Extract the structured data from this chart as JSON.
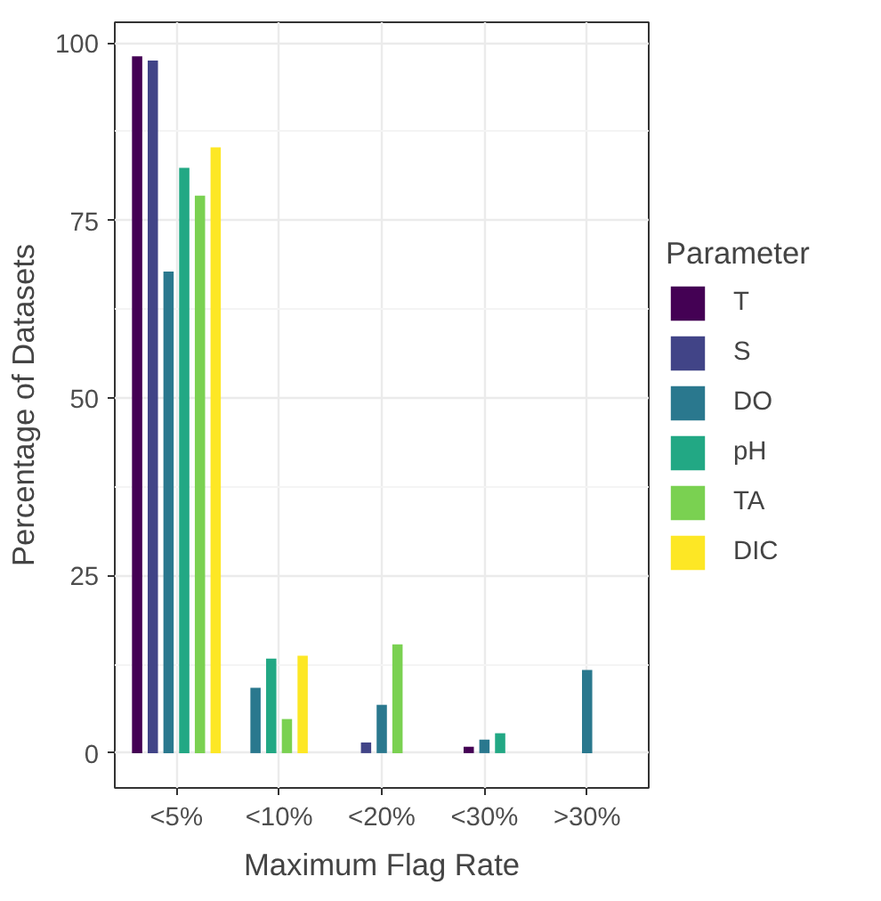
{
  "chart_data": {
    "type": "bar",
    "xlabel": "Maximum Flag Rate",
    "ylabel": "Percentage of Datasets",
    "legend_title": "Parameter",
    "legend": "right",
    "grid": true,
    "categories": [
      "<5%",
      "<10%",
      "<20%",
      "<30%",
      ">30%"
    ],
    "ylim": [
      -4.9,
      102.9
    ],
    "yticks": [
      0,
      25,
      50,
      75,
      100
    ],
    "series": [
      {
        "name": "T",
        "color": "#440154",
        "values": [
          98.1,
          null,
          null,
          0.9,
          null
        ]
      },
      {
        "name": "S",
        "color": "#414487",
        "values": [
          97.5,
          null,
          1.5,
          null,
          null
        ]
      },
      {
        "name": "DO",
        "color": "#2a788e",
        "values": [
          67.8,
          9.2,
          6.8,
          1.9,
          11.7
        ]
      },
      {
        "name": "pH",
        "color": "#22a884",
        "values": [
          82.4,
          13.3,
          null,
          2.8,
          null
        ]
      },
      {
        "name": "TA",
        "color": "#7ad151",
        "values": [
          78.5,
          4.8,
          15.3,
          null,
          null
        ]
      },
      {
        "name": "DIC",
        "color": "#fde725",
        "values": [
          85.3,
          13.7,
          null,
          null,
          null
        ]
      }
    ]
  }
}
